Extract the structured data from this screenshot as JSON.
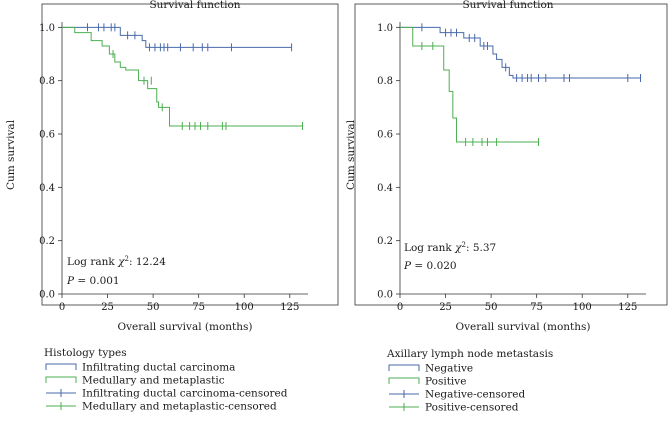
{
  "chart_data": [
    {
      "type": "line",
      "subtype": "kaplan-meier",
      "title": "Survival function",
      "xlabel": "Overall survival (months)",
      "ylabel": "Cum survival",
      "xlim": [
        0,
        135
      ],
      "ylim": [
        0,
        1.02
      ],
      "x_ticks": [
        0,
        25,
        50,
        75,
        100,
        125
      ],
      "x_tick_labels": [
        "0",
        "25",
        "50",
        "75",
        "100",
        "125"
      ],
      "y_ticks": [
        0.0,
        0.2,
        0.4,
        0.6,
        0.8,
        1.0
      ],
      "y_tick_labels": [
        "0.0",
        "0.2",
        "0.4",
        "0.6",
        "0.8",
        "1.0"
      ],
      "annotation": {
        "stat_prefix": "Log rank ",
        "chi": "χ",
        "sup": "2",
        "stat_value": ": 12.24",
        "p_label": "P",
        "p_value": " = 0.001"
      },
      "legend_title": "Histology types",
      "legend": [
        "Infiltrating ductal carcinoma",
        "Medullary and metaplastic",
        "Infiltrating ductal carcinoma-censored",
        "Medullary and metaplastic-censored"
      ],
      "series": [
        {
          "name": "Infiltrating ductal carcinoma",
          "color": "#4a6aab",
          "steps": [
            [
              0,
              1.0
            ],
            [
              32,
              0.97
            ],
            [
              44,
              0.95
            ],
            [
              46,
              0.925
            ],
            [
              126,
              0.925
            ]
          ],
          "censored": [
            [
              14,
              1.0
            ],
            [
              20,
              1.0
            ],
            [
              23,
              1.0
            ],
            [
              27,
              1.0
            ],
            [
              29,
              1.0
            ],
            [
              36,
              0.97
            ],
            [
              40,
              0.97
            ],
            [
              48,
              0.925
            ],
            [
              51,
              0.925
            ],
            [
              54,
              0.925
            ],
            [
              56,
              0.925
            ],
            [
              58,
              0.925
            ],
            [
              65,
              0.925
            ],
            [
              72,
              0.925
            ],
            [
              77,
              0.925
            ],
            [
              80,
              0.925
            ],
            [
              93,
              0.925
            ],
            [
              126,
              0.925
            ]
          ]
        },
        {
          "name": "Medullary and metaplastic",
          "color": "#4caf50",
          "steps": [
            [
              0,
              1.0
            ],
            [
              7,
              0.98
            ],
            [
              16,
              0.95
            ],
            [
              22,
              0.93
            ],
            [
              26,
              0.9
            ],
            [
              29,
              0.87
            ],
            [
              32,
              0.85
            ],
            [
              35,
              0.84
            ],
            [
              42,
              0.8
            ],
            [
              47,
              0.77
            ],
            [
              52,
              0.72
            ],
            [
              53,
              0.7
            ],
            [
              59,
              0.63
            ],
            [
              132,
              0.63
            ]
          ],
          "censored": [
            [
              28,
              0.9
            ],
            [
              45,
              0.8
            ],
            [
              49,
              0.8
            ],
            [
              55,
              0.7
            ],
            [
              66,
              0.63
            ],
            [
              70,
              0.63
            ],
            [
              73,
              0.63
            ],
            [
              76,
              0.63
            ],
            [
              80,
              0.63
            ],
            [
              88,
              0.63
            ],
            [
              90,
              0.63
            ],
            [
              132,
              0.63
            ]
          ]
        }
      ]
    },
    {
      "type": "line",
      "subtype": "kaplan-meier",
      "title": "Survival function",
      "xlabel": "Overall survival (months)",
      "ylabel": "Cum survival",
      "xlim": [
        0,
        135
      ],
      "ylim": [
        0,
        1.02
      ],
      "x_ticks": [
        0,
        25,
        50,
        75,
        100,
        125
      ],
      "x_tick_labels": [
        "0",
        "25",
        "50",
        "75",
        "100",
        "125"
      ],
      "y_ticks": [
        0.0,
        0.2,
        0.4,
        0.6,
        0.8,
        1.0
      ],
      "y_tick_labels": [
        "0.0",
        "0.2",
        "0.4",
        "0.6",
        "0.8",
        "1.0"
      ],
      "annotation": {
        "stat_prefix": "Log rank ",
        "chi": "χ",
        "sup": "2",
        "stat_value": ": 5.37",
        "p_label": "P",
        "p_value": " = 0.020"
      },
      "legend_title": "Axillary lymph node metastasis",
      "legend": [
        "Negative",
        "Positive",
        "Negative-censored",
        "Positive-censored"
      ],
      "series": [
        {
          "name": "Negative",
          "color": "#4a6aab",
          "steps": [
            [
              0,
              1.0
            ],
            [
              22,
              0.98
            ],
            [
              35,
              0.96
            ],
            [
              44,
              0.93
            ],
            [
              51,
              0.9
            ],
            [
              53,
              0.88
            ],
            [
              56,
              0.85
            ],
            [
              60,
              0.82
            ],
            [
              62,
              0.81
            ],
            [
              132,
              0.81
            ]
          ],
          "censored": [
            [
              12,
              1.0
            ],
            [
              25,
              0.98
            ],
            [
              28,
              0.98
            ],
            [
              31,
              0.98
            ],
            [
              38,
              0.96
            ],
            [
              41,
              0.96
            ],
            [
              46,
              0.93
            ],
            [
              48,
              0.93
            ],
            [
              58,
              0.85
            ],
            [
              64,
              0.81
            ],
            [
              67,
              0.81
            ],
            [
              70,
              0.81
            ],
            [
              72,
              0.81
            ],
            [
              76,
              0.81
            ],
            [
              80,
              0.81
            ],
            [
              90,
              0.81
            ],
            [
              93,
              0.81
            ],
            [
              125,
              0.81
            ],
            [
              132,
              0.81
            ]
          ]
        },
        {
          "name": "Positive",
          "color": "#4caf50",
          "steps": [
            [
              0,
              1.0
            ],
            [
              7,
              0.93
            ],
            [
              24,
              0.84
            ],
            [
              27,
              0.76
            ],
            [
              29,
              0.66
            ],
            [
              31,
              0.57
            ],
            [
              76,
              0.57
            ]
          ],
          "censored": [
            [
              12,
              0.93
            ],
            [
              18,
              0.93
            ],
            [
              36,
              0.57
            ],
            [
              40,
              0.57
            ],
            [
              45,
              0.57
            ],
            [
              48,
              0.57
            ],
            [
              53,
              0.57
            ],
            [
              76,
              0.57
            ]
          ]
        }
      ]
    }
  ]
}
